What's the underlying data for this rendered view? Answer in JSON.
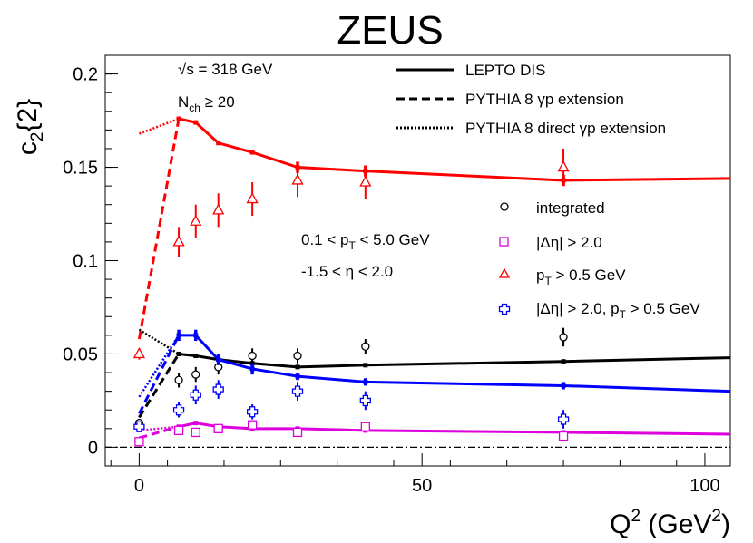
{
  "chart_data": {
    "type": "scatter",
    "title": "ZEUS",
    "xlabel_main": "Q",
    "xlabel_sup": "2",
    "xlabel_unit_open": " (GeV",
    "xlabel_unit_sup": "2",
    "xlabel_unit_close": ")",
    "ylabel_main": "c",
    "ylabel_sub": "2",
    "ylabel_tail": "{2}",
    "xlim": [
      -6,
      104.5
    ],
    "ylim": [
      -0.01,
      0.21
    ],
    "x_ticks": [
      0,
      50,
      100
    ],
    "x_tick_labels": [
      "0",
      "50",
      "100"
    ],
    "y_ticks": [
      0,
      0.05,
      0.1,
      0.15,
      0.2
    ],
    "y_tick_labels": [
      "0",
      "0.05",
      "0.1",
      "0.15",
      "0.2"
    ],
    "annotations": {
      "sqrt_s": "√s = 318 GeV",
      "nch_main": "N",
      "nch_sub": "ch",
      "nch_tail": " ≥ 20",
      "pt_pre": "0.1 < p",
      "pt_sub": "T",
      "pt_post": " < 5.0 GeV",
      "eta_range": "-1.5 < η < 2.0"
    },
    "legend_lines": [
      {
        "label": "LEPTO DIS",
        "style": "solid"
      },
      {
        "label": "PYTHIA 8 γp extension",
        "style": "dashed"
      },
      {
        "label": "PYTHIA 8 direct γp extension",
        "style": "dotted"
      }
    ],
    "legend_markers": [
      {
        "label": "integrated",
        "marker": "circle",
        "color": "#000000"
      },
      {
        "label": "|Δη| > 2.0",
        "marker": "square",
        "color": "#dd00dd"
      },
      {
        "label_main": "p",
        "label_sub": "T",
        "label_tail": " > 0.5 GeV",
        "marker": "triangle",
        "color": "#ff0000"
      },
      {
        "label": "|Δη| > 2.0, p",
        "label_sub": "T",
        "label_tail": " > 0.5 GeV",
        "marker": "cross",
        "color": "#0000ff"
      }
    ],
    "series": [
      {
        "name": "integrated",
        "color": "#000000",
        "marker": "circle",
        "points": [
          {
            "x": 0,
            "y": 0.013,
            "err": 0.002
          },
          {
            "x": 7,
            "y": 0.036,
            "err": 0.004
          },
          {
            "x": 10,
            "y": 0.039,
            "err": 0.004
          },
          {
            "x": 14,
            "y": 0.043,
            "err": 0.004
          },
          {
            "x": 20,
            "y": 0.049,
            "err": 0.004
          },
          {
            "x": 28,
            "y": 0.049,
            "err": 0.004
          },
          {
            "x": 40,
            "y": 0.054,
            "err": 0.004
          },
          {
            "x": 75,
            "y": 0.059,
            "err": 0.005
          }
        ],
        "model": {
          "x": [
            7,
            10,
            14,
            20,
            28,
            40,
            75,
            104.5
          ],
          "y": [
            0.05,
            0.049,
            0.047,
            0.045,
            0.043,
            0.044,
            0.046,
            0.048
          ],
          "err": [
            0.001,
            0.001,
            0.001,
            0.001,
            0.001,
            0.001,
            0.001,
            0
          ]
        },
        "gp_ext": {
          "x": [
            0,
            7
          ],
          "y": [
            0.016,
            0.05
          ]
        },
        "direct_ext": {
          "x": [
            0,
            7
          ],
          "y": [
            0.063,
            0.05
          ]
        }
      },
      {
        "name": "|Δη| > 2.0",
        "color": "#dd00dd",
        "marker": "square",
        "points": [
          {
            "x": 0,
            "y": 0.003,
            "err": 0.002
          },
          {
            "x": 7,
            "y": 0.009,
            "err": 0.002
          },
          {
            "x": 10,
            "y": 0.008,
            "err": 0.002
          },
          {
            "x": 14,
            "y": 0.01,
            "err": 0.002
          },
          {
            "x": 20,
            "y": 0.012,
            "err": 0.002
          },
          {
            "x": 28,
            "y": 0.008,
            "err": 0.002
          },
          {
            "x": 40,
            "y": 0.011,
            "err": 0.002
          },
          {
            "x": 75,
            "y": 0.006,
            "err": 0.002
          }
        ],
        "model": {
          "x": [
            7,
            10,
            14,
            20,
            28,
            40,
            75,
            104.5
          ],
          "y": [
            0.011,
            0.013,
            0.011,
            0.01,
            0.01,
            0.009,
            0.008,
            0.007
          ],
          "err": [
            0.001,
            0.001,
            0.001,
            0.001,
            0.001,
            0.001,
            0.001,
            0
          ]
        },
        "gp_ext": {
          "x": [
            0,
            7
          ],
          "y": [
            0.005,
            0.011
          ]
        },
        "direct_ext": {
          "x": [
            0,
            7
          ],
          "y": [
            0.009,
            0.011
          ]
        }
      },
      {
        "name": "pT > 0.5 GeV",
        "color": "#ff0000",
        "marker": "triangle",
        "points": [
          {
            "x": 0,
            "y": 0.05,
            "err": 0.003
          },
          {
            "x": 7,
            "y": 0.11,
            "err": 0.008
          },
          {
            "x": 10,
            "y": 0.121,
            "err": 0.009
          },
          {
            "x": 14,
            "y": 0.127,
            "err": 0.009
          },
          {
            "x": 20,
            "y": 0.133,
            "err": 0.009
          },
          {
            "x": 28,
            "y": 0.143,
            "err": 0.009
          },
          {
            "x": 40,
            "y": 0.142,
            "err": 0.009
          },
          {
            "x": 75,
            "y": 0.15,
            "err": 0.01
          }
        ],
        "model": {
          "x": [
            7,
            10,
            14,
            20,
            28,
            40,
            75,
            104.5
          ],
          "y": [
            0.176,
            0.174,
            0.163,
            0.158,
            0.15,
            0.148,
            0.143,
            0.144
          ],
          "err": [
            0.001,
            0.001,
            0.001,
            0.001,
            0.003,
            0.003,
            0.003,
            0
          ]
        },
        "gp_ext": {
          "x": [
            0,
            7
          ],
          "y": [
            0.058,
            0.176
          ]
        },
        "direct_ext": {
          "x": [
            0,
            7
          ],
          "y": [
            0.168,
            0.176
          ]
        }
      },
      {
        "name": "|Δη| > 2.0, pT > 0.5 GeV",
        "color": "#0000ff",
        "marker": "cross",
        "points": [
          {
            "x": 0,
            "y": 0.011,
            "err": 0.002
          },
          {
            "x": 7,
            "y": 0.02,
            "err": 0.004
          },
          {
            "x": 10,
            "y": 0.028,
            "err": 0.005
          },
          {
            "x": 14,
            "y": 0.031,
            "err": 0.005
          },
          {
            "x": 20,
            "y": 0.019,
            "err": 0.004
          },
          {
            "x": 28,
            "y": 0.03,
            "err": 0.005
          },
          {
            "x": 40,
            "y": 0.025,
            "err": 0.005
          },
          {
            "x": 75,
            "y": 0.015,
            "err": 0.005
          }
        ],
        "model": {
          "x": [
            7,
            10,
            14,
            20,
            28,
            40,
            75,
            104.5
          ],
          "y": [
            0.06,
            0.06,
            0.047,
            0.042,
            0.038,
            0.035,
            0.033,
            0.03
          ],
          "err": [
            0.003,
            0.003,
            0.003,
            0.003,
            0.002,
            0.002,
            0.002,
            0
          ]
        },
        "gp_ext": {
          "x": [
            0,
            7
          ],
          "y": [
            0.018,
            0.06
          ]
        },
        "direct_ext": {
          "x": [
            0,
            7
          ],
          "y": [
            0.027,
            0.06
          ]
        }
      }
    ]
  }
}
